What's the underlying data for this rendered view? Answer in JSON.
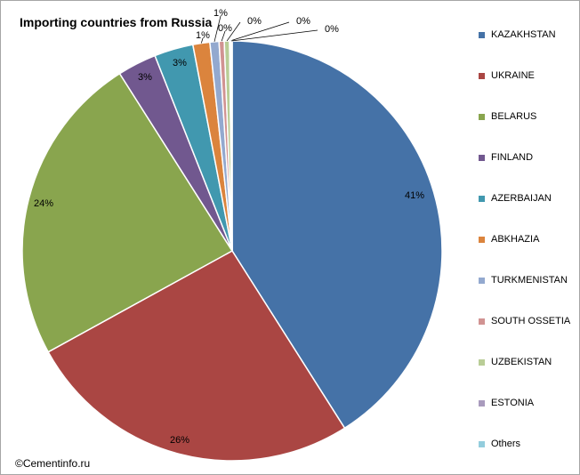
{
  "chart_data": {
    "type": "pie",
    "title": "Importing countries from Russia",
    "legend_position": "right",
    "slices": [
      {
        "name": "KAZAKHSTAN",
        "value": 41,
        "label": "41%",
        "color": "#4572a7"
      },
      {
        "name": "UKRAINE",
        "value": 26,
        "label": "26%",
        "color": "#aa4643"
      },
      {
        "name": "BELARUS",
        "value": 24,
        "label": "24%",
        "color": "#89a54e"
      },
      {
        "name": "FINLAND",
        "value": 3,
        "label": "3%",
        "color": "#71588f"
      },
      {
        "name": "AZERBAIJAN",
        "value": 3,
        "label": "3%",
        "color": "#4198af"
      },
      {
        "name": "ABKHAZIA",
        "value": 1.3,
        "label": "1%",
        "color": "#db843d"
      },
      {
        "name": "TURKMENISTAN",
        "value": 0.7,
        "label": "1%",
        "color": "#93a9cf"
      },
      {
        "name": "SOUTH OSSETIA",
        "value": 0.4,
        "label": "0%",
        "color": "#d19392"
      },
      {
        "name": "UZBEKISTAN",
        "value": 0.4,
        "label": "0%",
        "color": "#b9cd96"
      },
      {
        "name": "ESTONIA",
        "value": 0.1,
        "label": "0%",
        "color": "#a99bbd"
      },
      {
        "name": "Others",
        "value": 0.1,
        "label": "0%",
        "color": "#93cddd"
      }
    ]
  },
  "credit": "©Cementinfo.ru"
}
